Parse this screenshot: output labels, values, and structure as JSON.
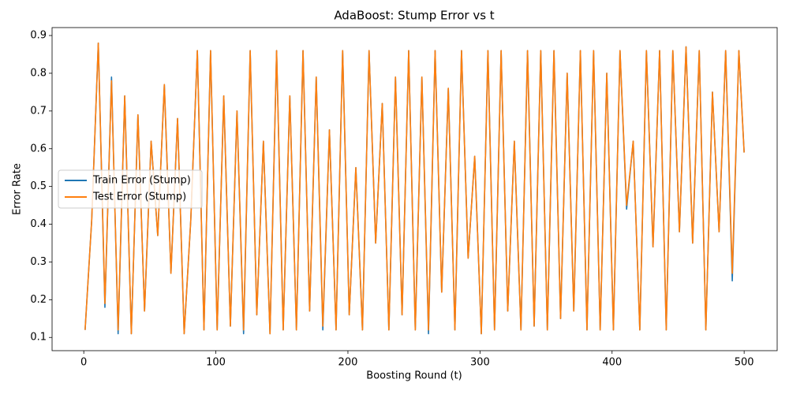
{
  "chart_data": {
    "type": "line",
    "title": "AdaBoost: Stump Error vs t",
    "x_label": "Boosting Round (t)",
    "y_label": "Error Rate",
    "x": [
      1,
      6,
      11,
      16,
      21,
      26,
      31,
      36,
      41,
      46,
      51,
      56,
      61,
      66,
      71,
      76,
      81,
      86,
      91,
      96,
      101,
      106,
      111,
      116,
      121,
      126,
      131,
      136,
      141,
      146,
      151,
      156,
      161,
      166,
      171,
      176,
      181,
      186,
      191,
      196,
      201,
      206,
      211,
      216,
      221,
      226,
      231,
      236,
      241,
      246,
      251,
      256,
      261,
      266,
      271,
      276,
      281,
      286,
      291,
      296,
      301,
      306,
      311,
      316,
      321,
      326,
      331,
      336,
      341,
      346,
      351,
      356,
      361,
      366,
      371,
      376,
      381,
      386,
      391,
      396,
      401,
      406,
      411,
      416,
      421,
      426,
      431,
      436,
      441,
      446,
      451,
      456,
      461,
      466,
      471,
      476,
      481,
      486,
      491,
      496,
      500
    ],
    "series": [
      {
        "name": "Train Error (Stump)",
        "color": "#1f77b4",
        "values": [
          0.12,
          0.41,
          0.88,
          0.18,
          0.79,
          0.11,
          0.74,
          0.11,
          0.69,
          0.17,
          0.62,
          0.37,
          0.77,
          0.27,
          0.68,
          0.11,
          0.41,
          0.86,
          0.12,
          0.86,
          0.12,
          0.74,
          0.13,
          0.7,
          0.11,
          0.86,
          0.16,
          0.62,
          0.11,
          0.86,
          0.12,
          0.74,
          0.12,
          0.86,
          0.17,
          0.79,
          0.12,
          0.65,
          0.12,
          0.86,
          0.16,
          0.55,
          0.12,
          0.86,
          0.35,
          0.72,
          0.12,
          0.79,
          0.16,
          0.86,
          0.12,
          0.79,
          0.11,
          0.86,
          0.22,
          0.76,
          0.12,
          0.86,
          0.31,
          0.58,
          0.11,
          0.86,
          0.12,
          0.86,
          0.17,
          0.62,
          0.12,
          0.86,
          0.13,
          0.86,
          0.12,
          0.86,
          0.15,
          0.8,
          0.17,
          0.86,
          0.12,
          0.86,
          0.12,
          0.8,
          0.12,
          0.86,
          0.44,
          0.62,
          0.12,
          0.86,
          0.34,
          0.86,
          0.12,
          0.86,
          0.38,
          0.87,
          0.35,
          0.86,
          0.12,
          0.75,
          0.38,
          0.86,
          0.25,
          0.86,
          0.59
        ]
      },
      {
        "name": "Test Error (Stump)",
        "color": "#ff7f0e",
        "values": [
          0.12,
          0.41,
          0.88,
          0.19,
          0.78,
          0.12,
          0.74,
          0.11,
          0.69,
          0.17,
          0.62,
          0.37,
          0.77,
          0.27,
          0.68,
          0.11,
          0.41,
          0.86,
          0.12,
          0.86,
          0.12,
          0.74,
          0.13,
          0.7,
          0.12,
          0.86,
          0.16,
          0.62,
          0.11,
          0.86,
          0.12,
          0.74,
          0.12,
          0.86,
          0.17,
          0.79,
          0.13,
          0.65,
          0.12,
          0.86,
          0.16,
          0.55,
          0.12,
          0.86,
          0.35,
          0.72,
          0.12,
          0.79,
          0.16,
          0.86,
          0.12,
          0.79,
          0.12,
          0.86,
          0.22,
          0.76,
          0.12,
          0.86,
          0.31,
          0.58,
          0.11,
          0.86,
          0.12,
          0.86,
          0.17,
          0.62,
          0.12,
          0.86,
          0.13,
          0.86,
          0.12,
          0.86,
          0.15,
          0.8,
          0.17,
          0.86,
          0.12,
          0.86,
          0.12,
          0.8,
          0.12,
          0.86,
          0.45,
          0.62,
          0.12,
          0.86,
          0.34,
          0.86,
          0.12,
          0.86,
          0.38,
          0.87,
          0.35,
          0.86,
          0.12,
          0.75,
          0.38,
          0.86,
          0.27,
          0.86,
          0.59
        ]
      }
    ],
    "xlim": [
      -24,
      525
    ],
    "ylim": [
      0.065,
      0.921
    ],
    "xticks": [
      0,
      100,
      200,
      300,
      400,
      500
    ],
    "yticks": [
      0.1,
      0.2,
      0.3,
      0.4,
      0.5,
      0.6,
      0.7,
      0.8,
      0.9
    ],
    "legend": "center left"
  }
}
